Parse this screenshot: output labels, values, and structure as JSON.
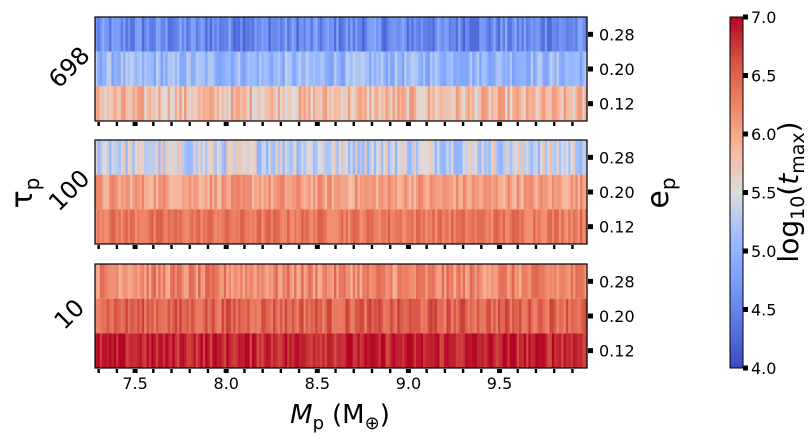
{
  "chart_data": {
    "type": "heatmap",
    "xlabel_main": "M",
    "xlabel_sub": "p",
    "xlabel_unit": "(M",
    "xlabel_unit_sub": "⊕",
    "xlabel_close": ")",
    "ylabel_main": "τ",
    "ylabel_sub": "p",
    "right_label_main": "e",
    "right_label_sub": "p",
    "xlim": [
      7.28,
      9.98
    ],
    "x_ticks": [
      "7.5",
      "8.0",
      "8.5",
      "9.0",
      "9.5"
    ],
    "x_tick_values": [
      7.5,
      8.0,
      8.5,
      9.0,
      9.5
    ],
    "e_ticks": [
      "0.28",
      "0.20",
      "0.12"
    ],
    "colorbar": {
      "label_prefix": "log",
      "label_base": "10",
      "label_var": "t",
      "label_var_sub": "max",
      "min": 4.0,
      "max": 7.0,
      "ticks": [
        "7.0",
        "6.5",
        "6.0",
        "5.5",
        "5.0",
        "4.5",
        "4.0"
      ],
      "tick_values": [
        7.0,
        6.5,
        6.0,
        5.5,
        5.0,
        4.5,
        4.0
      ],
      "colormap": "coolwarm"
    },
    "panels": [
      {
        "tau": "698",
        "rows": [
          {
            "e": "0.28",
            "mean": 4.55,
            "spread": 0.35
          },
          {
            "e": "0.20",
            "mean": 5.05,
            "spread": 0.3
          },
          {
            "e": "0.12",
            "mean": 5.8,
            "spread": 0.35
          }
        ]
      },
      {
        "tau": "100",
        "rows": [
          {
            "e": "0.28",
            "mean": 5.4,
            "spread": 0.4
          },
          {
            "e": "0.20",
            "mean": 6.05,
            "spread": 0.25
          },
          {
            "e": "0.12",
            "mean": 6.35,
            "spread": 0.2
          }
        ]
      },
      {
        "tau": "10",
        "rows": [
          {
            "e": "0.28",
            "mean": 6.2,
            "spread": 0.3
          },
          {
            "e": "0.20",
            "mean": 6.5,
            "spread": 0.25
          },
          {
            "e": "0.12",
            "mean": 6.85,
            "spread": 0.2
          }
        ]
      }
    ]
  }
}
